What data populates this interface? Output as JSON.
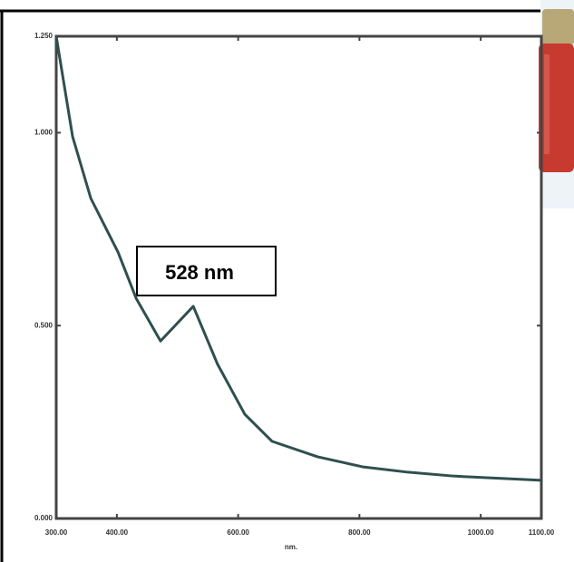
{
  "chart_data": {
    "type": "line",
    "x_label": "nm.",
    "annotation": "528 nm",
    "xlim": [
      300,
      1100
    ],
    "xticks": [
      {
        "value": 300,
        "label": "300.00"
      },
      {
        "value": 400,
        "label": "400.00"
      },
      {
        "value": 600,
        "label": "600.00"
      },
      {
        "value": 800,
        "label": "800.00"
      },
      {
        "value": 1000,
        "label": "1000.00"
      },
      {
        "value": 1100,
        "label": "1100.00"
      }
    ],
    "ylim": [
      0,
      1.25
    ],
    "yticks": [
      {
        "value": 0,
        "label": "0.000"
      },
      {
        "value": 0.5,
        "label": "0.500"
      },
      {
        "value": 1,
        "label": "1.000"
      },
      {
        "value": 1.25,
        "label": "1.250"
      }
    ],
    "x": [
      300,
      327,
      357,
      402,
      432,
      472,
      526,
      566,
      611,
      656,
      731,
      805,
      880,
      955,
      1100
    ],
    "series": [
      {
        "color": "#2f4f4f",
        "values": [
          1.25,
          0.99,
          0.83,
          0.69,
          0.57,
          0.46,
          0.55,
          0.4,
          0.27,
          0.2,
          0.16,
          0.134,
          0.12,
          0.11,
          0.099
        ]
      }
    ]
  }
}
